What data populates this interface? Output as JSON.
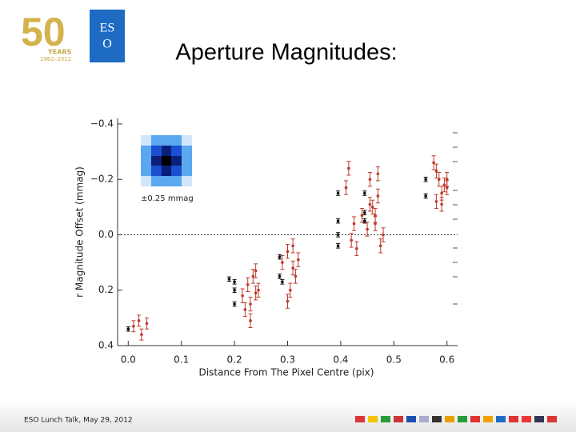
{
  "logo": {
    "anniversary": "50",
    "years": "YEARS",
    "period": "1962–2012",
    "org_top": "ES",
    "org_bottom": "O"
  },
  "footer": "ESO Lunch Talk,  May 29, 2012",
  "chart_data": {
    "type": "scatter",
    "title": "Aperture Magnitudes:",
    "x_label": "Distance From The Pixel Centre (pix)",
    "y_label": "r Magnitude Offset (mmag)",
    "annotation": "±0.25 mmag",
    "xlim": [
      -0.02,
      0.62
    ],
    "ylim": [
      0.4,
      -0.42
    ],
    "xticks": [
      {
        "value": 0,
        "label": "0.0"
      },
      0.1,
      0.2,
      0.3,
      0.4,
      0.5,
      0.6
    ],
    "yticks": [
      {
        "value": -0.4,
        "label": "−0.4"
      },
      {
        "value": -0.2,
        "label": "−0.2"
      },
      {
        "value": 0,
        "label": "0.0"
      },
      0.2,
      0.4
    ],
    "reference_line": true,
    "series": [
      {
        "color": "#c0392b",
        "x": [
          0.01,
          0.02,
          0.025,
          0.035,
          0.215,
          0.225,
          0.23,
          0.235,
          0.24,
          0.245,
          0.23,
          0.22,
          0.24,
          0.29,
          0.3,
          0.305,
          0.31,
          0.315,
          0.32,
          0.31,
          0.3,
          0.41,
          0.42,
          0.415,
          0.425,
          0.43,
          0.44,
          0.45,
          0.455,
          0.46,
          0.465,
          0.47,
          0.475,
          0.48,
          0.47,
          0.455,
          0.465,
          0.575,
          0.58,
          0.585,
          0.59,
          0.595,
          0.6,
          0.58,
          0.59,
          0.6
        ],
        "values": [
          0.33,
          0.31,
          0.36,
          0.32,
          0.22,
          0.18,
          0.25,
          0.15,
          0.21,
          0.2,
          0.31,
          0.27,
          0.13,
          0.1,
          0.06,
          0.2,
          0.04,
          0.15,
          0.09,
          0.12,
          0.24,
          -0.17,
          0.02,
          -0.24,
          -0.04,
          0.05,
          -0.07,
          -0.02,
          -0.11,
          -0.1,
          -0.04,
          -0.14,
          0.04,
          0.0,
          -0.22,
          -0.2,
          -0.07,
          -0.26,
          -0.23,
          -0.2,
          -0.15,
          -0.18,
          -0.2,
          -0.12,
          -0.11,
          -0.17
        ],
        "errors": [
          0.02,
          0.02,
          0.02,
          0.02,
          0.025,
          0.025,
          0.025,
          0.025,
          0.025,
          0.025,
          0.025,
          0.025,
          0.025,
          0.025,
          0.025,
          0.025,
          0.025,
          0.025,
          0.025,
          0.025,
          0.025,
          0.025,
          0.025,
          0.025,
          0.025,
          0.025,
          0.025,
          0.025,
          0.025,
          0.025,
          0.025,
          0.025,
          0.025,
          0.025,
          0.025,
          0.025,
          0.025,
          0.025,
          0.025,
          0.025,
          0.025,
          0.025,
          0.025,
          0.025,
          0.025,
          0.025
        ]
      },
      {
        "color": "#111111",
        "x": [
          0.0,
          0.2,
          0.2,
          0.2,
          0.19,
          0.285,
          0.285,
          0.29,
          0.395,
          0.395,
          0.395,
          0.395,
          0.445,
          0.445,
          0.445,
          0.56,
          0.56
        ],
        "values": [
          0.34,
          0.17,
          0.2,
          0.25,
          0.16,
          0.08,
          0.15,
          0.17,
          -0.15,
          -0.05,
          0.0,
          0.04,
          -0.15,
          -0.08,
          -0.05,
          -0.2,
          -0.14
        ],
        "errors": [
          0.008,
          0.008,
          0.008,
          0.008,
          0.008,
          0.008,
          0.008,
          0.008,
          0.008,
          0.008,
          0.008,
          0.008,
          0.008,
          0.008,
          0.008,
          0.008,
          0.008
        ]
      }
    ]
  }
}
